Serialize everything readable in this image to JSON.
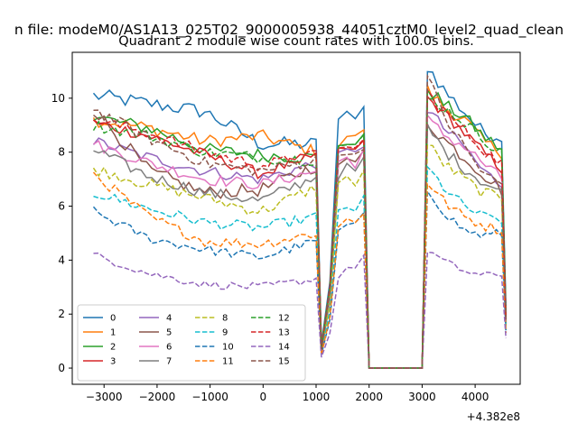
{
  "chart_data": {
    "type": "line",
    "suptitle": "n file: modeM0/AS1A13_025T02_9000005938_44051cztM0_level2_quad_clean",
    "title": "Quadrant 2 module wise count rates with 100.0s bins.",
    "xlabel": "",
    "ylabel": "",
    "x_offset_label": "+4.382e8",
    "xlim": [
      -3600,
      4850
    ],
    "ylim": [
      -0.6,
      11.7
    ],
    "x_ticks": [
      -3000,
      -2000,
      -1000,
      0,
      1000,
      2000,
      3000,
      4000
    ],
    "x_tick_labels": [
      "−3000",
      "−2000",
      "−1000",
      "0",
      "1000",
      "2000",
      "3000",
      "4000"
    ],
    "y_ticks": [
      0,
      2,
      4,
      6,
      8,
      10
    ],
    "y_tick_labels": [
      "0",
      "2",
      "4",
      "6",
      "8",
      "10"
    ],
    "grid": false,
    "legend": {
      "position": "lower-left",
      "ncol": 4
    },
    "segments": {
      "a": {
        "start": -3200,
        "end": 1100,
        "step": 100
      },
      "b": {
        "start": 1100,
        "end": 1900,
        "step": 100
      },
      "gap_zero": {
        "start": 2000,
        "end": 2900
      },
      "c": {
        "start": 3100,
        "end": 4500,
        "step": 100
      }
    },
    "series": [
      {
        "name": "0",
        "color": "#1f77b4",
        "dash": "solid",
        "a": [
          10.1,
          9.8,
          9.5,
          8.3,
          8.3
        ],
        "a_noise": 0.28,
        "b": [
          0.9,
          3.2,
          9.3,
          9.5,
          9.1,
          9.6
        ],
        "c": [
          11.2,
          10.2,
          9.5,
          8.7,
          8.6
        ],
        "end": 2.3
      },
      {
        "name": "1",
        "color": "#ff7f0e",
        "dash": "solid",
        "a": [
          9.2,
          8.9,
          8.4,
          8.6,
          8.0
        ],
        "a_noise": 0.25,
        "b": [
          0.8,
          3.0,
          8.3,
          8.6,
          8.5,
          8.9
        ],
        "c": [
          10.3,
          9.6,
          9.2,
          8.4,
          8.0
        ],
        "end": 1.9
      },
      {
        "name": "2",
        "color": "#2ca02c",
        "dash": "solid",
        "a": [
          9.3,
          8.9,
          8.1,
          7.9,
          7.8
        ],
        "a_noise": 0.25,
        "b": [
          0.8,
          3.0,
          8.3,
          8.4,
          8.3,
          8.5
        ],
        "c": [
          10.4,
          9.7,
          9.3,
          8.6,
          8.1
        ],
        "end": 2.0
      },
      {
        "name": "3",
        "color": "#d62728",
        "dash": "solid",
        "a": [
          9.1,
          8.6,
          7.9,
          7.2,
          7.9
        ],
        "a_noise": 0.22,
        "b": [
          0.7,
          3.0,
          8.0,
          8.2,
          8.0,
          8.4
        ],
        "c": [
          10.0,
          9.4,
          8.7,
          8.0,
          7.4
        ],
        "end": 1.8
      },
      {
        "name": "4",
        "color": "#9467bd",
        "dash": "solid",
        "a": [
          8.4,
          7.8,
          7.3,
          7.0,
          7.6
        ],
        "a_noise": 0.22,
        "b": [
          0.7,
          2.8,
          7.8,
          8.0,
          7.9,
          8.3
        ],
        "c": [
          9.6,
          8.8,
          8.2,
          7.3,
          6.8
        ],
        "end": 1.7
      },
      {
        "name": "5",
        "color": "#8c564b",
        "dash": "solid",
        "a": [
          9.6,
          7.3,
          6.5,
          6.6,
          7.5
        ],
        "a_noise": 0.25,
        "b": [
          0.6,
          2.6,
          7.4,
          7.8,
          7.5,
          8.0
        ],
        "c": [
          9.1,
          8.4,
          7.8,
          7.2,
          6.6
        ],
        "end": 1.6
      },
      {
        "name": "6",
        "color": "#e377c2",
        "dash": "solid",
        "a": [
          8.3,
          7.6,
          7.0,
          6.8,
          7.3
        ],
        "a_noise": 0.22,
        "b": [
          0.7,
          2.7,
          7.6,
          7.8,
          7.6,
          8.1
        ],
        "c": [
          9.2,
          8.6,
          8.2,
          7.6,
          7.0
        ],
        "end": 1.7
      },
      {
        "name": "7",
        "color": "#7f7f7f",
        "dash": "solid",
        "a": [
          8.1,
          7.1,
          6.5,
          6.2,
          7.1
        ],
        "a_noise": 0.22,
        "b": [
          0.6,
          2.5,
          7.2,
          7.4,
          7.3,
          7.7
        ],
        "c": [
          8.9,
          8.0,
          7.4,
          6.9,
          6.5
        ],
        "end": 1.6
      },
      {
        "name": "8",
        "color": "#bcbd22",
        "dash": "dashed",
        "a": [
          7.4,
          6.8,
          6.3,
          5.8,
          6.7
        ],
        "a_noise": 0.22,
        "b": [
          0.6,
          2.4,
          6.8,
          7.0,
          6.9,
          7.3
        ],
        "c": [
          8.3,
          7.5,
          7.0,
          6.5,
          6.3
        ],
        "end": 1.5
      },
      {
        "name": "9",
        "color": "#17becf",
        "dash": "dashed",
        "a": [
          6.5,
          5.9,
          5.4,
          5.2,
          5.6
        ],
        "a_noise": 0.2,
        "b": [
          0.6,
          2.1,
          5.8,
          6.0,
          5.9,
          6.2
        ],
        "c": [
          7.4,
          6.6,
          6.0,
          5.6,
          5.5
        ],
        "end": 1.4
      },
      {
        "name": "10",
        "color": "#1f77b4",
        "dash": "dashed",
        "a": [
          5.8,
          4.8,
          4.4,
          4.1,
          4.7
        ],
        "a_noise": 0.18,
        "b": [
          0.5,
          1.8,
          5.0,
          5.3,
          5.2,
          5.6
        ],
        "c": [
          6.6,
          5.7,
          5.1,
          4.9,
          5.0
        ],
        "end": 1.3
      },
      {
        "name": "11",
        "color": "#ff7f0e",
        "dash": "dashed",
        "a": [
          7.2,
          5.6,
          4.7,
          4.6,
          5.0
        ],
        "a_noise": 0.2,
        "b": [
          0.5,
          1.9,
          5.2,
          5.5,
          5.4,
          5.8
        ],
        "c": [
          6.9,
          6.1,
          5.6,
          5.3,
          5.1
        ],
        "end": 1.3
      },
      {
        "name": "12",
        "color": "#2ca02c",
        "dash": "dashed",
        "a": [
          9.0,
          8.6,
          8.0,
          7.8,
          7.7
        ],
        "a_noise": 0.22,
        "b": [
          0.7,
          3.0,
          8.2,
          8.3,
          8.2,
          8.5
        ],
        "c": [
          10.0,
          9.6,
          9.1,
          8.5,
          8.0
        ],
        "end": 1.9
      },
      {
        "name": "13",
        "color": "#d62728",
        "dash": "dashed",
        "a": [
          9.2,
          8.7,
          8.0,
          7.5,
          7.9
        ],
        "a_noise": 0.22,
        "b": [
          0.7,
          3.0,
          8.1,
          8.3,
          8.1,
          8.5
        ],
        "c": [
          10.2,
          9.4,
          8.8,
          8.1,
          7.6
        ],
        "end": 1.8
      },
      {
        "name": "14",
        "color": "#9467bd",
        "dash": "dashed",
        "a": [
          4.2,
          3.5,
          3.1,
          3.0,
          3.3
        ],
        "a_noise": 0.15,
        "b": [
          0.4,
          1.3,
          3.5,
          3.7,
          3.8,
          4.0
        ],
        "c": [
          4.4,
          3.9,
          3.6,
          3.4,
          3.5
        ],
        "end": 1.1
      },
      {
        "name": "15",
        "color": "#8c564b",
        "dash": "dashed",
        "a": [
          9.6,
          8.5,
          7.6,
          7.3,
          7.7
        ],
        "a_noise": 0.22,
        "b": [
          0.7,
          2.9,
          7.9,
          8.1,
          7.9,
          8.3
        ],
        "c": [
          10.8,
          9.2,
          8.2,
          7.2,
          6.8
        ],
        "end": 1.8
      }
    ]
  }
}
